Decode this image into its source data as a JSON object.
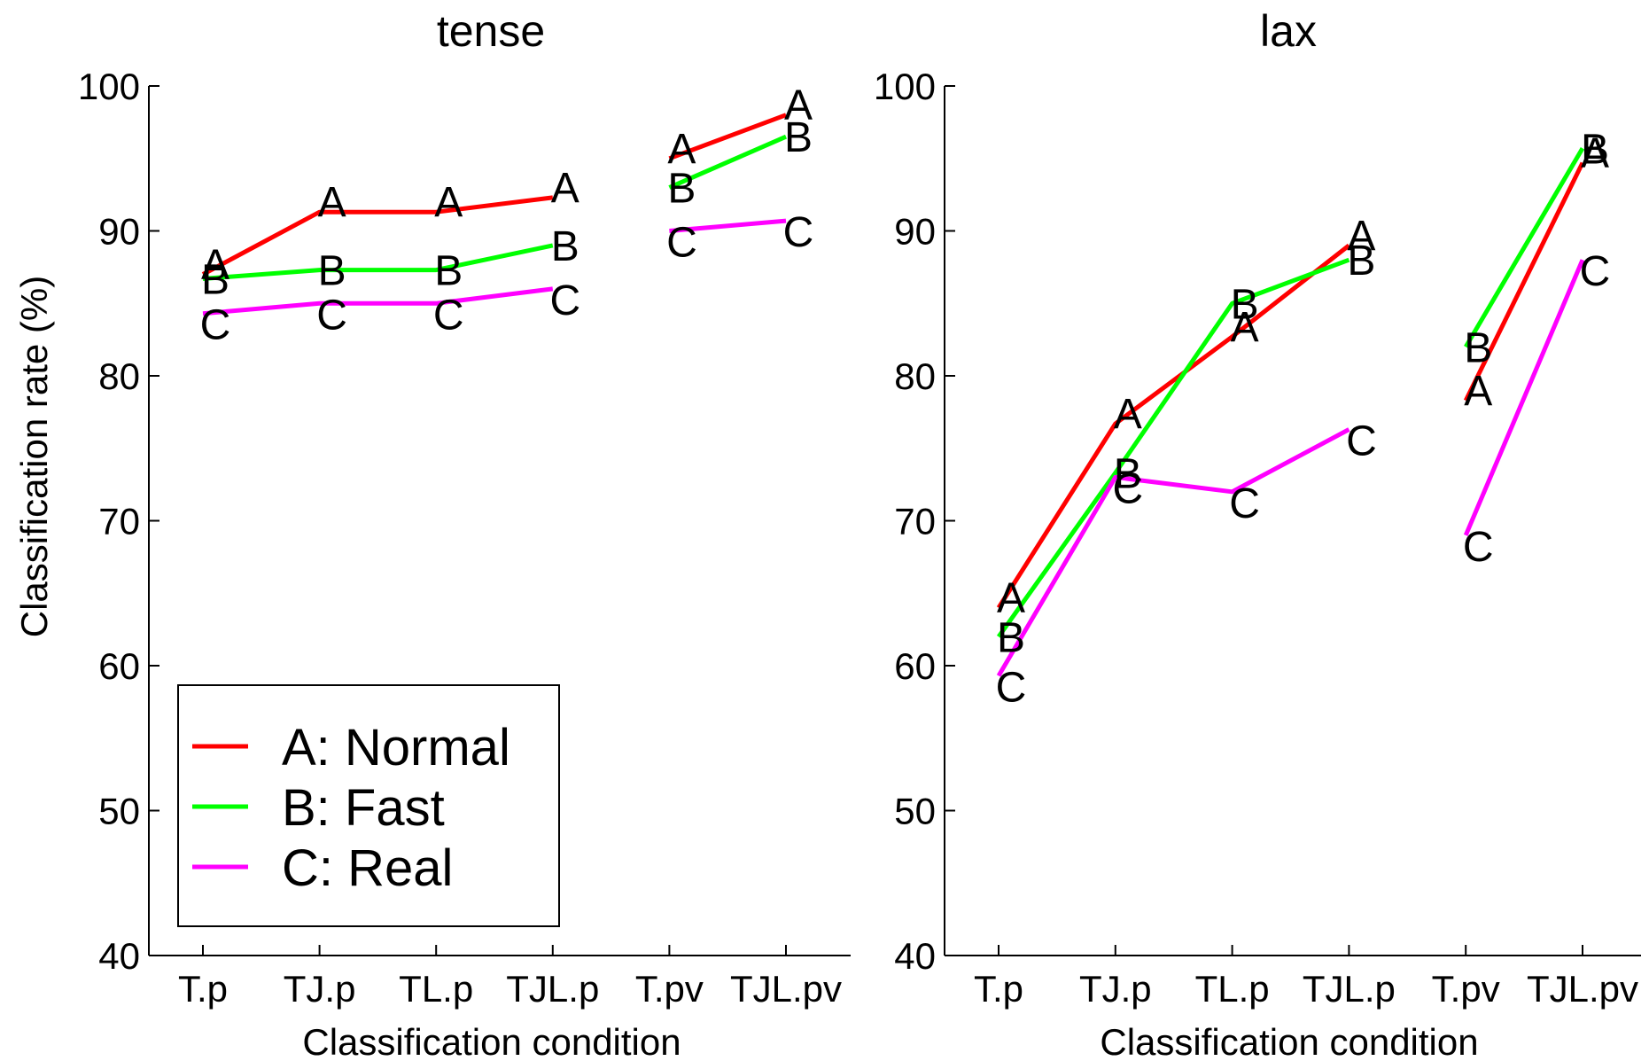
{
  "chart_data": [
    {
      "type": "line",
      "title": "tense",
      "xlabel": "Classification condition",
      "ylabel": "Classification rate (%)",
      "ylim": [
        40,
        100
      ],
      "yticks": [
        40,
        50,
        60,
        70,
        80,
        90,
        100
      ],
      "categories": [
        "T.p",
        "TJ.p",
        "TL.p",
        "TJL.p",
        "T.pv",
        "TJL.pv"
      ],
      "segments": [
        [
          0,
          3
        ],
        [
          4,
          5
        ]
      ],
      "grid": false,
      "legend_position": "bottom-left",
      "series": [
        {
          "name": "A: Normal",
          "marker": "A",
          "color": "#ff0000",
          "values": [
            87.0,
            91.3,
            91.3,
            92.3,
            95.0,
            98.0
          ]
        },
        {
          "name": "B: Fast",
          "marker": "B",
          "color": "#00ff00",
          "values": [
            86.7,
            87.3,
            87.3,
            89.0,
            93.0,
            96.5
          ]
        },
        {
          "name": "C: Real",
          "marker": "C",
          "color": "#ff00ff",
          "values": [
            84.3,
            85.0,
            85.0,
            86.0,
            90.0,
            90.7
          ]
        }
      ]
    },
    {
      "type": "line",
      "title": "lax",
      "xlabel": "Classification condition",
      "ylabel": "",
      "ylim": [
        40,
        100
      ],
      "yticks": [
        40,
        50,
        60,
        70,
        80,
        90,
        100
      ],
      "categories": [
        "T.p",
        "TJ.p",
        "TL.p",
        "TJL.p",
        "T.pv",
        "TJL.pv"
      ],
      "segments": [
        [
          0,
          3
        ],
        [
          4,
          5
        ]
      ],
      "grid": false,
      "series": [
        {
          "name": "A: Normal",
          "marker": "A",
          "color": "#ff0000",
          "values": [
            64.0,
            76.7,
            82.7,
            89.0,
            78.3,
            94.7
          ]
        },
        {
          "name": "B: Fast",
          "marker": "B",
          "color": "#00ff00",
          "values": [
            62.0,
            73.3,
            85.0,
            88.0,
            82.0,
            95.7
          ]
        },
        {
          "name": "C: Real",
          "marker": "C",
          "color": "#ff00ff",
          "values": [
            59.3,
            73.0,
            72.0,
            76.3,
            69.0,
            88.0
          ]
        }
      ]
    }
  ]
}
